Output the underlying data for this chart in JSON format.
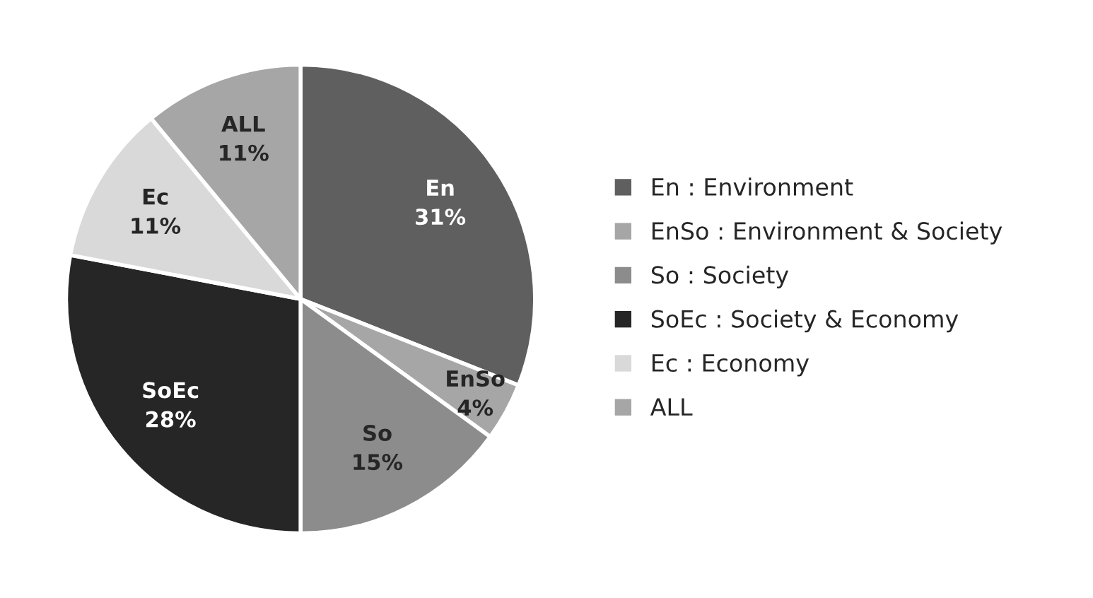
{
  "chart_data": {
    "type": "pie",
    "categories": [
      "En : Environment",
      "EnSo : Environment & Society",
      "So : Society",
      "SoEc : Society & Economy",
      "Ec : Economy",
      "ALL"
    ],
    "values": [
      31,
      4,
      15,
      28,
      11,
      11
    ],
    "value_labels": [
      "En\n31%",
      "EnSo\n4%",
      "So\n15%",
      "SoEc\n28%",
      "Ec\n11%",
      "ALL\n11%"
    ],
    "colors": [
      "#5f5f5f",
      "#a6a6a6",
      "#8c8c8c",
      "#262626",
      "#d9d9d9",
      "#a6a6a6"
    ],
    "legend": "right"
  }
}
